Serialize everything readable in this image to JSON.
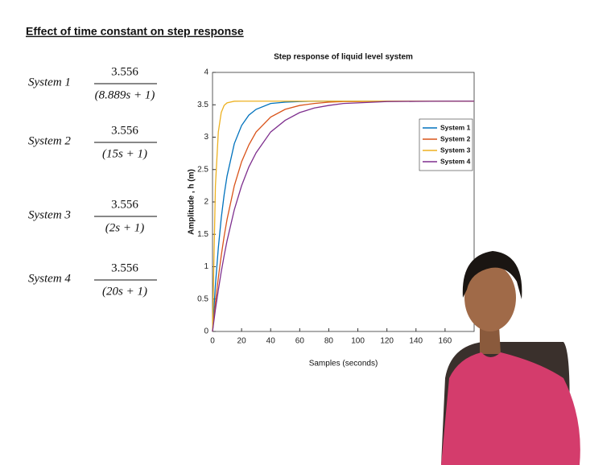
{
  "heading": "Effect of time constant on step response",
  "systems": [
    {
      "name": "System 1",
      "numerator": "3.556",
      "denominator": "(8.889s + 1)"
    },
    {
      "name": "System 2",
      "numerator": "3.556",
      "denominator": "(15s + 1)"
    },
    {
      "name": "System 3",
      "numerator": "3.556",
      "denominator": "(2s + 1)"
    },
    {
      "name": "System 4",
      "numerator": "3.556",
      "denominator": "(20s + 1)"
    }
  ],
  "chart_data": {
    "type": "line",
    "title": "Step response of liquid level system",
    "x_label": "Samples (seconds)",
    "y_label": "Amplitude , h (m)",
    "x": [
      0,
      2,
      4,
      6,
      8,
      10,
      15,
      20,
      25,
      30,
      40,
      50,
      60,
      70,
      80,
      90,
      100,
      120,
      140,
      160,
      180
    ],
    "series": [
      {
        "name": "System 1",
        "color": "#0072bd",
        "values": [
          0,
          0.72,
          1.29,
          1.75,
          2.11,
          2.4,
          2.9,
          3.18,
          3.34,
          3.43,
          3.52,
          3.54,
          3.55,
          3.556,
          3.556,
          3.556,
          3.556,
          3.556,
          3.556,
          3.556,
          3.556
        ]
      },
      {
        "name": "System 2",
        "color": "#d95319",
        "values": [
          0,
          0.44,
          0.83,
          1.17,
          1.47,
          1.73,
          2.25,
          2.62,
          2.88,
          3.08,
          3.31,
          3.43,
          3.49,
          3.52,
          3.54,
          3.55,
          3.55,
          3.556,
          3.556,
          3.556,
          3.556
        ]
      },
      {
        "name": "System 3",
        "color": "#edb120",
        "values": [
          0,
          2.25,
          3.08,
          3.38,
          3.49,
          3.53,
          3.555,
          3.556,
          3.556,
          3.556,
          3.556,
          3.556,
          3.556,
          3.556,
          3.556,
          3.556,
          3.556,
          3.556,
          3.556,
          3.556,
          3.556
        ]
      },
      {
        "name": "System 4",
        "color": "#7e2f8e",
        "values": [
          0,
          0.34,
          0.64,
          0.92,
          1.17,
          1.4,
          1.88,
          2.25,
          2.54,
          2.76,
          3.08,
          3.26,
          3.38,
          3.45,
          3.49,
          3.52,
          3.53,
          3.55,
          3.553,
          3.556,
          3.556
        ]
      }
    ],
    "xlim": [
      0,
      180
    ],
    "xticks": [
      0,
      20,
      40,
      60,
      80,
      100,
      120,
      140,
      160
    ],
    "ylim": [
      0,
      4
    ],
    "yticks": [
      0,
      0.5,
      1,
      1.5,
      2,
      2.5,
      3,
      3.5,
      4
    ],
    "grid": false,
    "legend": "upper right"
  }
}
